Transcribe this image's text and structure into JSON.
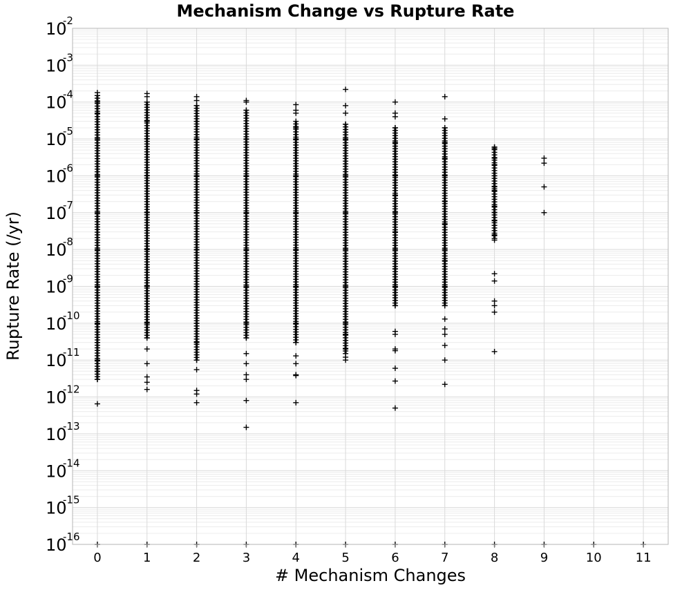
{
  "chart_data": {
    "type": "scatter",
    "title": "Mechanism Change vs Rupture Rate",
    "xlabel": "# Mechanism Changes",
    "ylabel": "Rupture Rate (/yr)",
    "xlim": [
      -0.5,
      11.5
    ],
    "ylim": [
      1e-16,
      0.01
    ],
    "yscale": "log",
    "grid": true,
    "marker": "+",
    "marker_color": "#000000",
    "x_ticks": [
      "0",
      "1",
      "2",
      "3",
      "4",
      "5",
      "6",
      "7",
      "8",
      "9",
      "10",
      "11"
    ],
    "y_ticks": [
      {
        "base": "10",
        "exp": "-16"
      },
      {
        "base": "10",
        "exp": "-15"
      },
      {
        "base": "10",
        "exp": "-14"
      },
      {
        "base": "10",
        "exp": "-13"
      },
      {
        "base": "10",
        "exp": "-12"
      },
      {
        "base": "10",
        "exp": "-11"
      },
      {
        "base": "10",
        "exp": "-10"
      },
      {
        "base": "10",
        "exp": "-9"
      },
      {
        "base": "10",
        "exp": "-8"
      },
      {
        "base": "10",
        "exp": "-7"
      },
      {
        "base": "10",
        "exp": "-6"
      },
      {
        "base": "10",
        "exp": "-5"
      },
      {
        "base": "10",
        "exp": "-4"
      },
      {
        "base": "10",
        "exp": "-3"
      },
      {
        "base": "10",
        "exp": "-2"
      }
    ],
    "series": [
      {
        "x": 0,
        "dense_range": [
          3e-12,
          0.00015
        ],
        "y": [
          0.00018,
          0.00015,
          0.0001,
          5e-05,
          1e-05,
          1e-06,
          1e-07,
          1e-08,
          1e-09,
          1e-10,
          3e-11,
          1e-11,
          5e-12,
          3e-12,
          6.5e-13,
          1e-16
        ]
      },
      {
        "x": 1,
        "dense_range": [
          4e-11,
          0.0001
        ],
        "y": [
          0.00017,
          0.00014,
          0.0001,
          3e-05,
          1e-05,
          1e-06,
          1e-07,
          1e-08,
          1e-09,
          1e-10,
          4e-11,
          2e-11,
          8e-12,
          3.5e-12,
          2.5e-12,
          1.6e-12,
          1e-16
        ]
      },
      {
        "x": 2,
        "dense_range": [
          1e-11,
          8e-05
        ],
        "y": [
          0.00014,
          0.00011,
          8e-05,
          3e-05,
          1e-05,
          1e-06,
          1e-07,
          1e-08,
          1e-09,
          1e-10,
          3e-11,
          1e-11,
          5.5e-12,
          1.5e-12,
          1.2e-12,
          7e-13,
          1e-16
        ]
      },
      {
        "x": 3,
        "dense_range": [
          4e-11,
          6e-05
        ],
        "y": [
          0.00011,
          0.0001,
          6e-05,
          1e-05,
          1e-06,
          1e-07,
          1e-08,
          1e-09,
          1e-10,
          4e-11,
          1.5e-11,
          8e-12,
          4e-12,
          3e-12,
          8e-13,
          1.5e-13,
          1e-16
        ]
      },
      {
        "x": 4,
        "dense_range": [
          3e-11,
          3e-05
        ],
        "y": [
          8.5e-05,
          6e-05,
          5e-05,
          2e-05,
          1e-05,
          1e-06,
          1e-07,
          1e-08,
          1e-09,
          1e-10,
          3e-11,
          1.3e-11,
          8e-12,
          4e-12,
          3.8e-12,
          7e-13,
          1e-16
        ]
      },
      {
        "x": 5,
        "dense_range": [
          1.5e-11,
          2.5e-05
        ],
        "y": [
          0.00022,
          8e-05,
          5e-05,
          2.5e-05,
          1e-05,
          1e-06,
          1e-07,
          1e-08,
          1e-09,
          1e-10,
          5e-11,
          2e-11,
          1.2e-11,
          1e-11,
          1e-16
        ]
      },
      {
        "x": 6,
        "dense_range": [
          3e-10,
          2e-05
        ],
        "y": [
          0.0001,
          5e-05,
          4e-05,
          2e-05,
          8e-06,
          1e-06,
          3e-07,
          1e-07,
          3e-08,
          1e-08,
          3e-09,
          1e-09,
          3e-10,
          6e-11,
          5e-11,
          2e-11,
          1.8e-11,
          6e-12,
          2.7e-12,
          5e-13,
          1e-16
        ]
      },
      {
        "x": 7,
        "dense_range": [
          3e-10,
          2e-05
        ],
        "y": [
          0.00014,
          3.5e-05,
          2e-05,
          8e-06,
          3e-06,
          1e-06,
          2e-07,
          5e-08,
          1e-08,
          5e-09,
          1e-09,
          3e-10,
          1.3e-10,
          7e-11,
          5e-11,
          2.5e-11,
          1e-11,
          2.2e-12,
          1e-16
        ]
      },
      {
        "x": 8,
        "dense_range": [
          2e-08,
          6e-06
        ],
        "y": [
          6e-06,
          5.5e-06,
          3e-06,
          2e-06,
          1e-06,
          5e-07,
          4e-07,
          1.5e-07,
          1e-07,
          6e-08,
          4.5e-08,
          2.5e-08,
          1.8e-08,
          2.2e-09,
          1.4e-09,
          4e-10,
          3e-10,
          2e-10,
          1.7e-11,
          1e-16
        ]
      },
      {
        "x": 9,
        "y": [
          3e-06,
          2.2e-06,
          5e-07,
          1e-07,
          1e-16
        ]
      },
      {
        "x": 10,
        "y": [
          1e-16
        ]
      },
      {
        "x": 11,
        "y": [
          1e-16
        ]
      }
    ]
  }
}
